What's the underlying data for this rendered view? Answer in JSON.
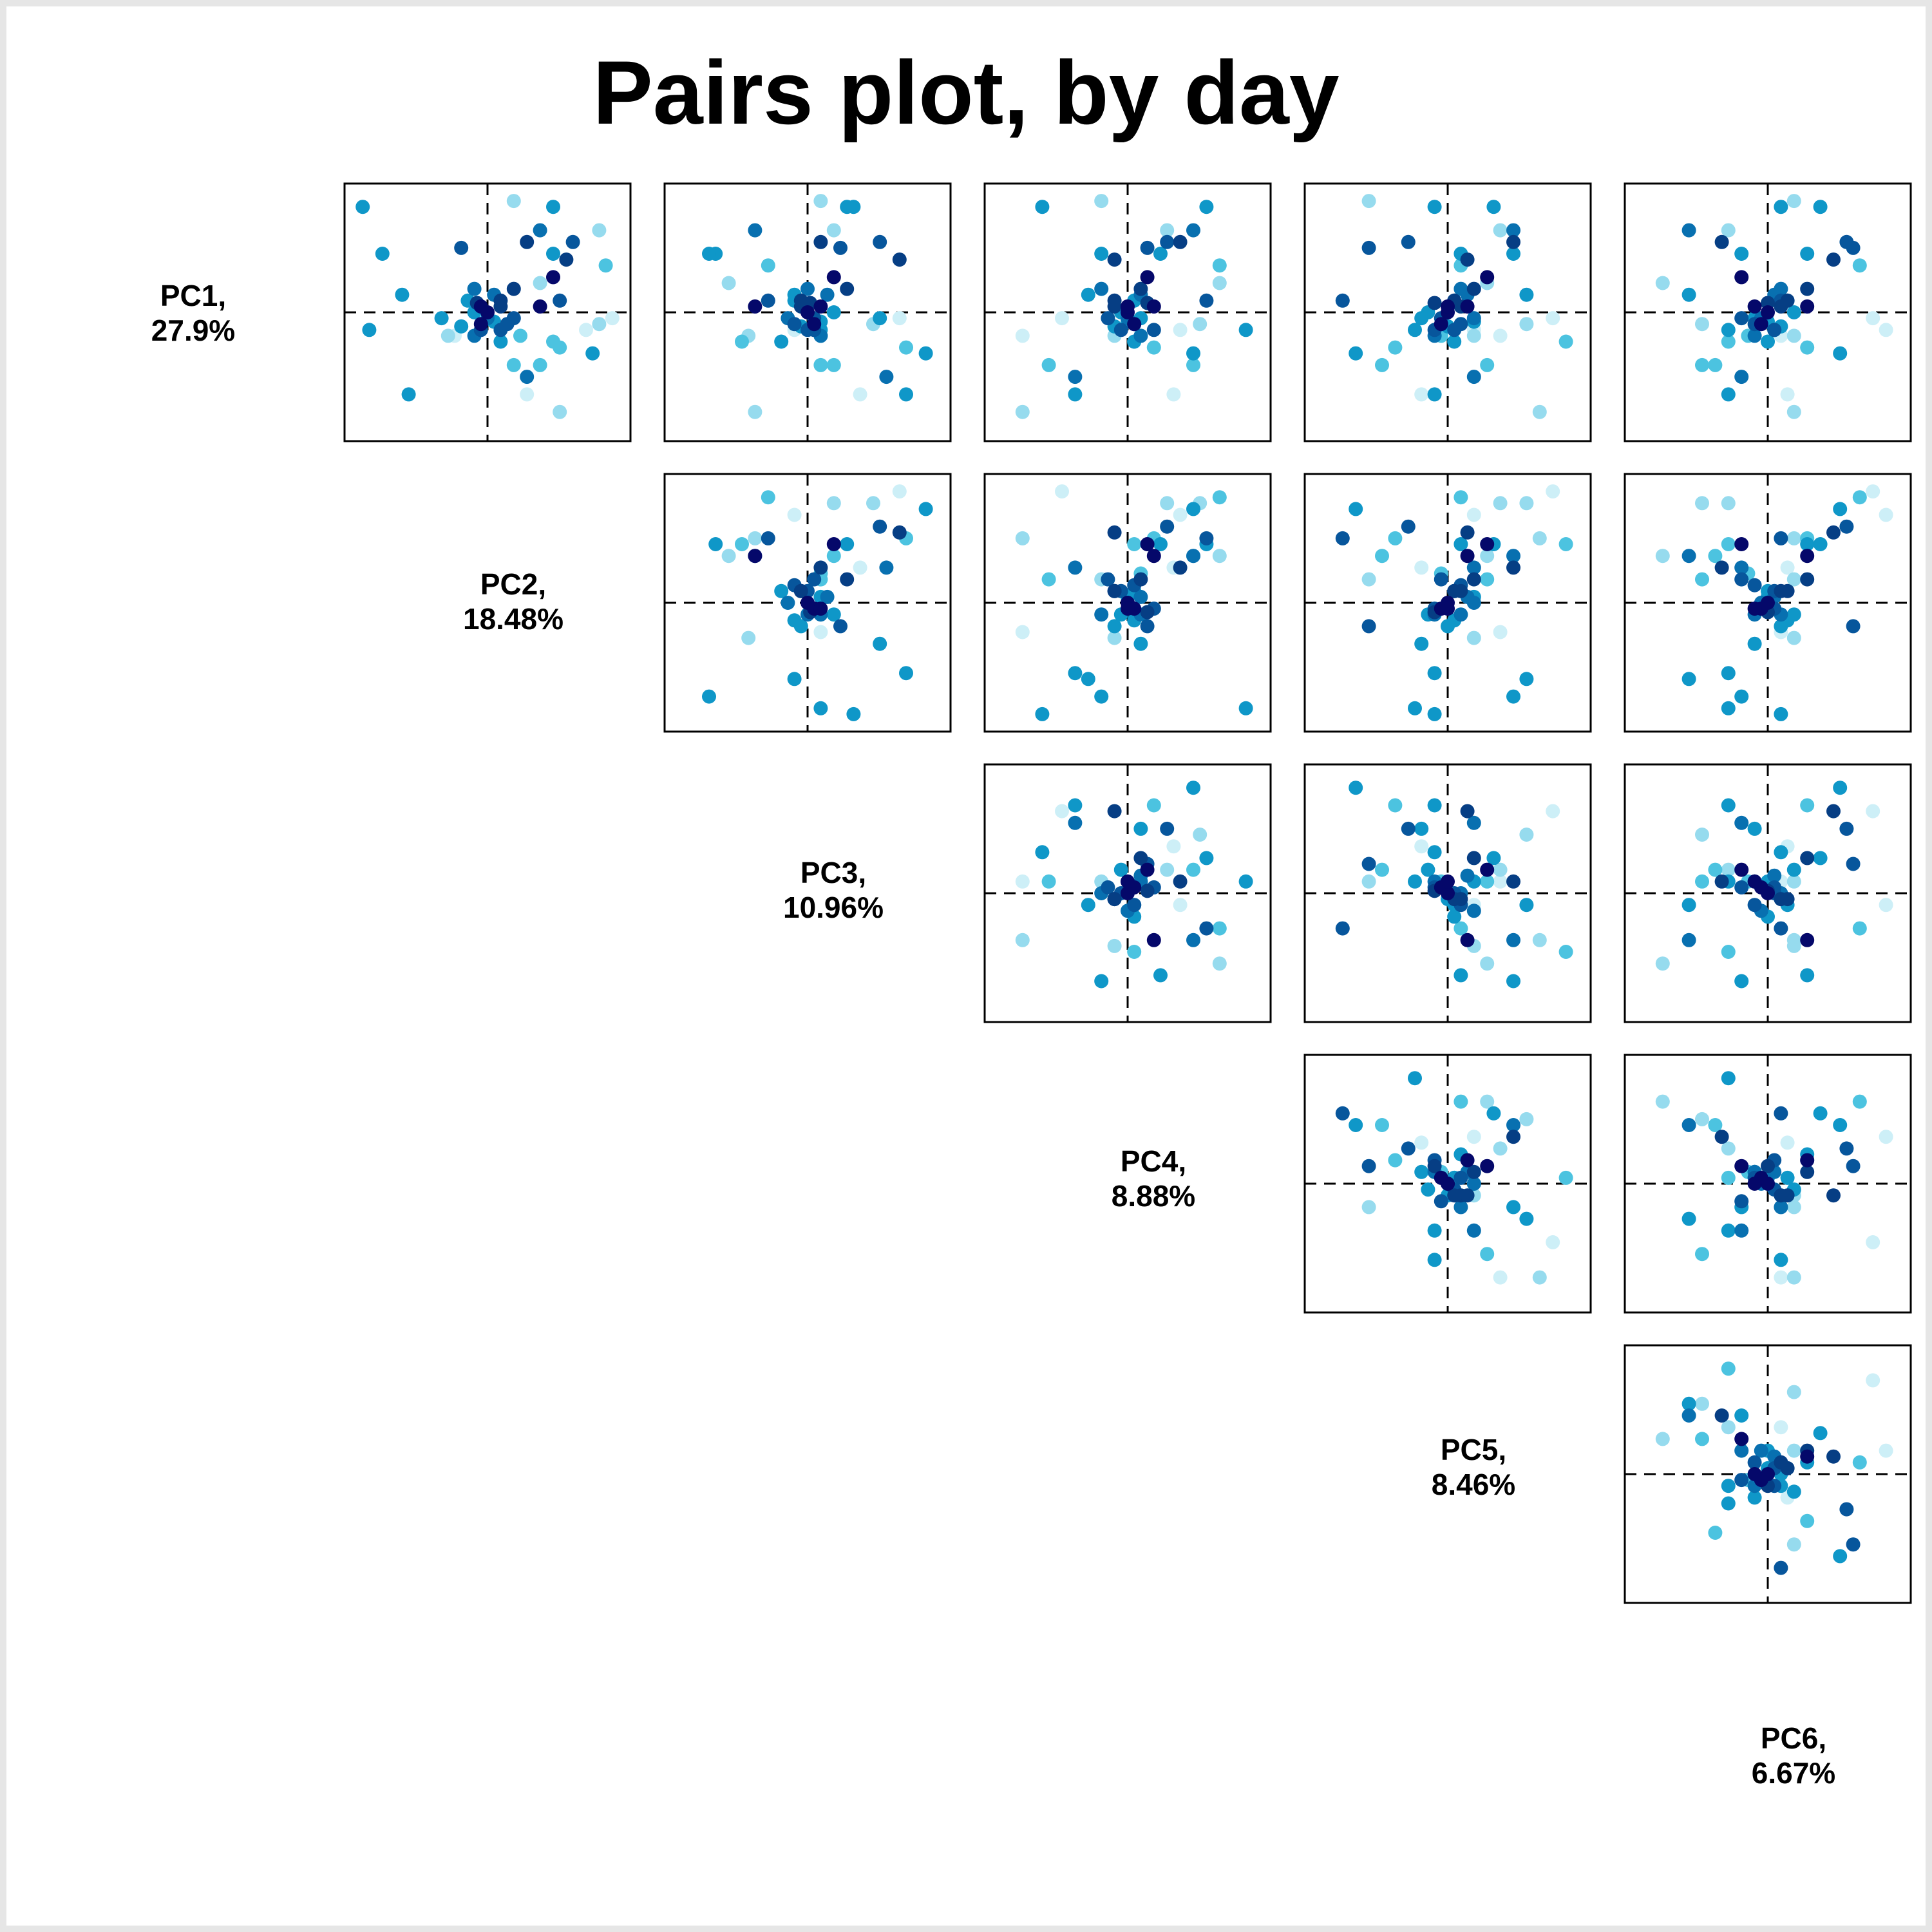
{
  "chart_data": {
    "type": "scatter",
    "title": "Pairs plot, by day",
    "layout": "pairs-upper-triangle",
    "variables": [
      {
        "name": "PC1,",
        "variance": "27.9%"
      },
      {
        "name": "PC2,",
        "variance": "18.48%"
      },
      {
        "name": "PC3,",
        "variance": "10.96%"
      },
      {
        "name": "PC4,",
        "variance": "8.88%"
      },
      {
        "name": "PC5,",
        "variance": "8.46%"
      },
      {
        "name": "PC6,",
        "variance": "6.67%"
      }
    ],
    "axis_range": [
      -1,
      1
    ],
    "reference_lines": {
      "x": 0,
      "y": 0,
      "style": "dashed"
    },
    "grid": false,
    "palette": [
      "#cdeff7",
      "#96dbee",
      "#4cc3e0",
      "#0f97c8",
      "#0870b0",
      "#07569c",
      "#063e84",
      "#05086a"
    ],
    "points": [
      {
        "c": 3,
        "pc": [
          -0.08,
          0.05,
          0.1,
          0.0,
          0.2,
          0.0
        ]
      },
      {
        "c": 5,
        "pc": [
          -0.15,
          0.1,
          0.0,
          -0.05,
          0.05,
          0.05
        ]
      },
      {
        "c": 7,
        "pc": [
          0.0,
          0.0,
          0.0,
          0.0,
          0.0,
          0.0
        ]
      },
      {
        "c": 7,
        "pc": [
          -0.1,
          -0.05,
          0.05,
          0.05,
          -0.05,
          -0.05
        ]
      },
      {
        "c": 6,
        "pc": [
          0.05,
          0.1,
          -0.05,
          -0.1,
          0.1,
          0.1
        ]
      },
      {
        "c": 4,
        "pc": [
          -0.2,
          -0.1,
          0.1,
          0.1,
          -0.1,
          -0.1
        ]
      },
      {
        "c": 3,
        "pc": [
          0.1,
          -0.15,
          -0.1,
          0.05,
          0.05,
          0.15
        ]
      },
      {
        "c": 5,
        "pc": [
          -0.05,
          0.2,
          0.05,
          -0.15,
          -0.05,
          -0.2
        ]
      },
      {
        "c": 4,
        "pc": [
          0.15,
          0.05,
          0.15,
          0.1,
          0.15,
          0.05
        ]
      },
      {
        "c": 3,
        "pc": [
          -0.12,
          -0.2,
          -0.05,
          -0.1,
          0.0,
          0.1
        ]
      },
      {
        "c": 6,
        "pc": [
          0.08,
          -0.08,
          0.02,
          0.15,
          -0.1,
          0.0
        ]
      },
      {
        "c": 5,
        "pc": [
          -0.1,
          0.15,
          -0.1,
          0.05,
          0.1,
          -0.1
        ]
      },
      {
        "c": 3,
        "pc": [
          0.0,
          -0.1,
          0.2,
          -0.05,
          -0.15,
          0.2
        ]
      },
      {
        "c": 4,
        "pc": [
          -0.05,
          0.0,
          -0.15,
          0.0,
          0.2,
          -0.05
        ]
      },
      {
        "c": 2,
        "pc": [
          -0.2,
          0.25,
          0.1,
          0.1,
          -0.05,
          -0.15
        ]
      },
      {
        "c": 6,
        "pc": [
          0.1,
          0.1,
          -0.05,
          -0.1,
          0.05,
          0.15
        ]
      },
      {
        "c": 5,
        "pc": [
          -0.15,
          -0.05,
          0.05,
          0.2,
          -0.1,
          0.05
        ]
      },
      {
        "c": 7,
        "pc": [
          0.05,
          -0.05,
          0.1,
          0.0,
          0.0,
          -0.1
        ]
      },
      {
        "c": 3,
        "pc": [
          -0.25,
          0.1,
          -0.2,
          0.05,
          0.05,
          0.0
        ]
      },
      {
        "c": 4,
        "pc": [
          0.2,
          -0.1,
          0.0,
          -0.2,
          0.1,
          0.1
        ]
      },
      {
        "c": 7,
        "pc": [
          0.3,
          0.5,
          0.2,
          0.15,
          0.3,
          -0.2
        ]
      },
      {
        "c": 6,
        "pc": [
          0.2,
          0.2,
          0.3,
          0.1,
          0.2,
          0.3
        ]
      },
      {
        "c": 6,
        "pc": [
          0.45,
          0.6,
          0.7,
          -0.1,
          0.15,
          0.5
        ]
      },
      {
        "c": 5,
        "pc": [
          0.6,
          0.65,
          0.55,
          0.3,
          -0.3,
          0.6
        ]
      },
      {
        "c": 4,
        "pc": [
          0.7,
          0.4,
          -0.4,
          0.5,
          0.5,
          -0.6
        ]
      },
      {
        "c": 3,
        "pc": [
          0.9,
          0.5,
          0.3,
          0.6,
          0.35,
          0.4
        ]
      },
      {
        "c": 1,
        "pc": [
          0.95,
          0.2,
          0.1,
          -0.2,
          -0.6,
          0.2
        ]
      },
      {
        "c": 1,
        "pc": [
          0.7,
          0.85,
          0.2,
          0.3,
          0.4,
          -0.3
        ]
      },
      {
        "c": 2,
        "pc": [
          0.4,
          0.9,
          -0.3,
          0.7,
          0.1,
          0.7
        ]
      },
      {
        "c": 0,
        "pc": [
          -0.05,
          0.95,
          0.7,
          -0.5,
          0.8,
          0.8
        ]
      },
      {
        "c": 1,
        "pc": [
          -0.1,
          0.85,
          0.5,
          0.55,
          0.6,
          -0.5
        ]
      },
      {
        "c": 2,
        "pc": [
          -0.3,
          0.55,
          0.75,
          0.2,
          -0.4,
          0.3
        ]
      },
      {
        "c": 1,
        "pc": [
          -0.85,
          0.55,
          -0.4,
          -0.8,
          0.7,
          0.2
        ]
      },
      {
        "c": 0,
        "pc": [
          -0.15,
          0.75,
          -0.1,
          0.4,
          0.2,
          0.9
        ]
      },
      {
        "c": 3,
        "pc": [
          -0.35,
          0.8,
          0.9,
          0.5,
          -0.7,
          0.55
        ]
      },
      {
        "c": 2,
        "pc": [
          -0.25,
          0.5,
          -0.5,
          0.05,
          0.9,
          -0.3
        ]
      },
      {
        "c": 6,
        "pc": [
          0.6,
          0.3,
          0.1,
          0.4,
          0.5,
          -0.35
        ]
      },
      {
        "c": 5,
        "pc": [
          0.1,
          0.55,
          -0.3,
          0.6,
          -0.8,
          0.1
        ]
      },
      {
        "c": 1,
        "pc": [
          0.25,
          0.4,
          -0.6,
          0.7,
          0.3,
          -0.8
        ]
      },
      {
        "c": 3,
        "pc": [
          0.5,
          0.5,
          -0.7,
          0.25,
          0.1,
          0.3
        ]
      },
      {
        "c": 4,
        "pc": [
          -0.55,
          0.3,
          0.6,
          -0.4,
          0.2,
          -0.2
        ]
      },
      {
        "c": 0,
        "pc": [
          -0.7,
          0.3,
          0.4,
          0.35,
          -0.2,
          0.15
        ]
      },
      {
        "c": 2,
        "pc": [
          -0.45,
          0.4,
          0.2,
          0.5,
          -0.5,
          -0.4
        ]
      },
      {
        "c": 3,
        "pc": [
          -0.05,
          -0.35,
          0.55,
          0.1,
          -0.2,
          -0.1
        ]
      },
      {
        "c": 1,
        "pc": [
          -0.2,
          -0.3,
          -0.45,
          -0.1,
          0.2,
          0.2
        ]
      },
      {
        "c": 5,
        "pc": [
          0.55,
          -0.2,
          0.25,
          0.15,
          -0.6,
          0.65
        ]
      },
      {
        "c": 3,
        "pc": [
          -0.7,
          -0.6,
          0.75,
          -0.4,
          -0.1,
          -0.3
        ]
      },
      {
        "c": 3,
        "pc": [
          0.15,
          -0.65,
          -0.1,
          -0.3,
          0.6,
          -0.6
        ]
      },
      {
        "c": 3,
        "pc": [
          0.5,
          -0.8,
          -0.75,
          -0.2,
          0.5,
          -0.2
        ]
      },
      {
        "c": 3,
        "pc": [
          0.9,
          -0.95,
          0.35,
          -0.65,
          -0.1,
          0.1
        ]
      },
      {
        "c": 3,
        "pc": [
          -0.15,
          -0.9,
          0.1,
          0.9,
          -0.25,
          -0.3
        ]
      },
      {
        "c": 2,
        "pc": [
          -0.45,
          0.2,
          0.1,
          -0.6,
          0.3,
          -0.5
        ]
      },
      {
        "c": 0,
        "pc": [
          -0.2,
          -0.25,
          0.1,
          -0.8,
          0.4,
          0.1
        ]
      },
      {
        "c": 7,
        "pc": [
          0.05,
          0.4,
          -0.4,
          0.2,
          0.15,
          0.3
        ]
      }
    ]
  }
}
